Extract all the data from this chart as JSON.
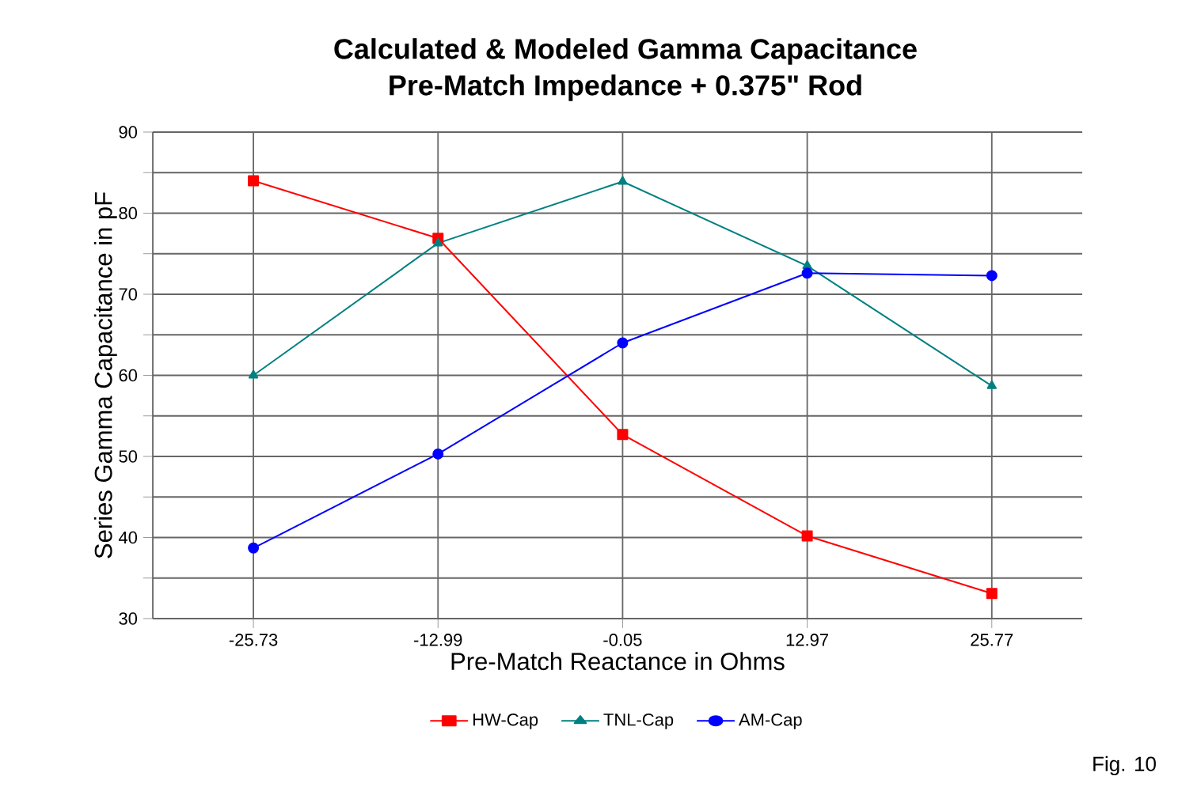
{
  "chart_data": {
    "type": "line",
    "title": "Calculated & Modeled Gamma Capacitance",
    "subtitle": "Pre-Match Impedance + 0.375\" Rod",
    "xlabel": "Pre-Match Reactance in Ohms",
    "ylabel": "Series Gamma Capacitance in pF",
    "categories": [
      "-25.73",
      "-12.99",
      "-0.05",
      "12.97",
      "25.77"
    ],
    "series": [
      {
        "name": "HW-Cap",
        "color": "#ff0000",
        "marker": "square",
        "values": [
          84.0,
          76.9,
          52.7,
          40.2,
          33.1
        ]
      },
      {
        "name": "TNL-Cap",
        "color": "#008080",
        "marker": "triangle",
        "values": [
          60.0,
          76.3,
          83.9,
          73.5,
          58.7
        ]
      },
      {
        "name": "AM-Cap",
        "color": "#0000ff",
        "marker": "circle",
        "values": [
          38.7,
          50.3,
          64.0,
          72.6,
          72.3
        ]
      }
    ],
    "ylim": [
      30,
      90
    ],
    "yticks": [
      30,
      {
        "value": 35,
        "label": null
      },
      40,
      {
        "value": 45,
        "label": null
      },
      50,
      {
        "value": 55,
        "label": null
      },
      60,
      {
        "value": 65,
        "label": null
      },
      70,
      {
        "value": 75,
        "label": null
      },
      80,
      {
        "value": 85,
        "label": null
      },
      90
    ],
    "grid": true,
    "legend": "bottom",
    "line_style": "solid",
    "annotations": [
      "Fig. 10"
    ]
  }
}
